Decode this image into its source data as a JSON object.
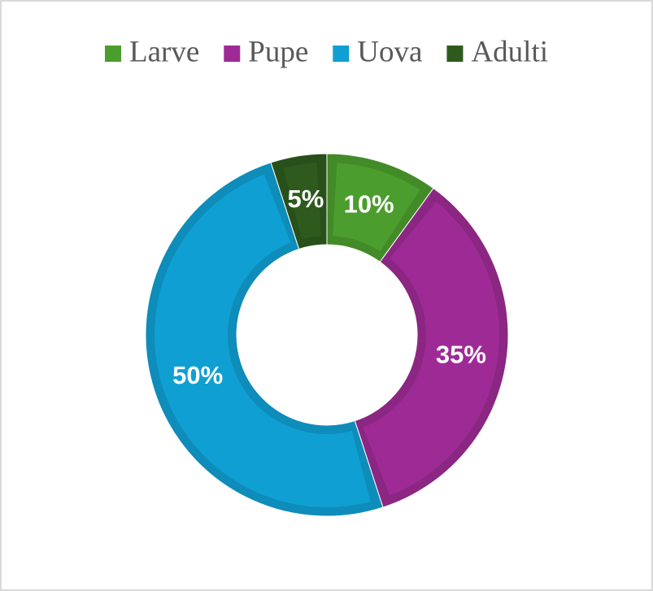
{
  "chart_data": {
    "type": "pie",
    "categories": [
      "Larve",
      "Pupe",
      "Uova",
      "Adulti"
    ],
    "values": [
      10,
      35,
      50,
      5
    ],
    "value_labels": [
      "10%",
      "35%",
      "50%",
      "5%"
    ],
    "colors": [
      "#4b9e2d",
      "#9e2b95",
      "#109fd3",
      "#2e5b1d"
    ],
    "legend": "top"
  }
}
